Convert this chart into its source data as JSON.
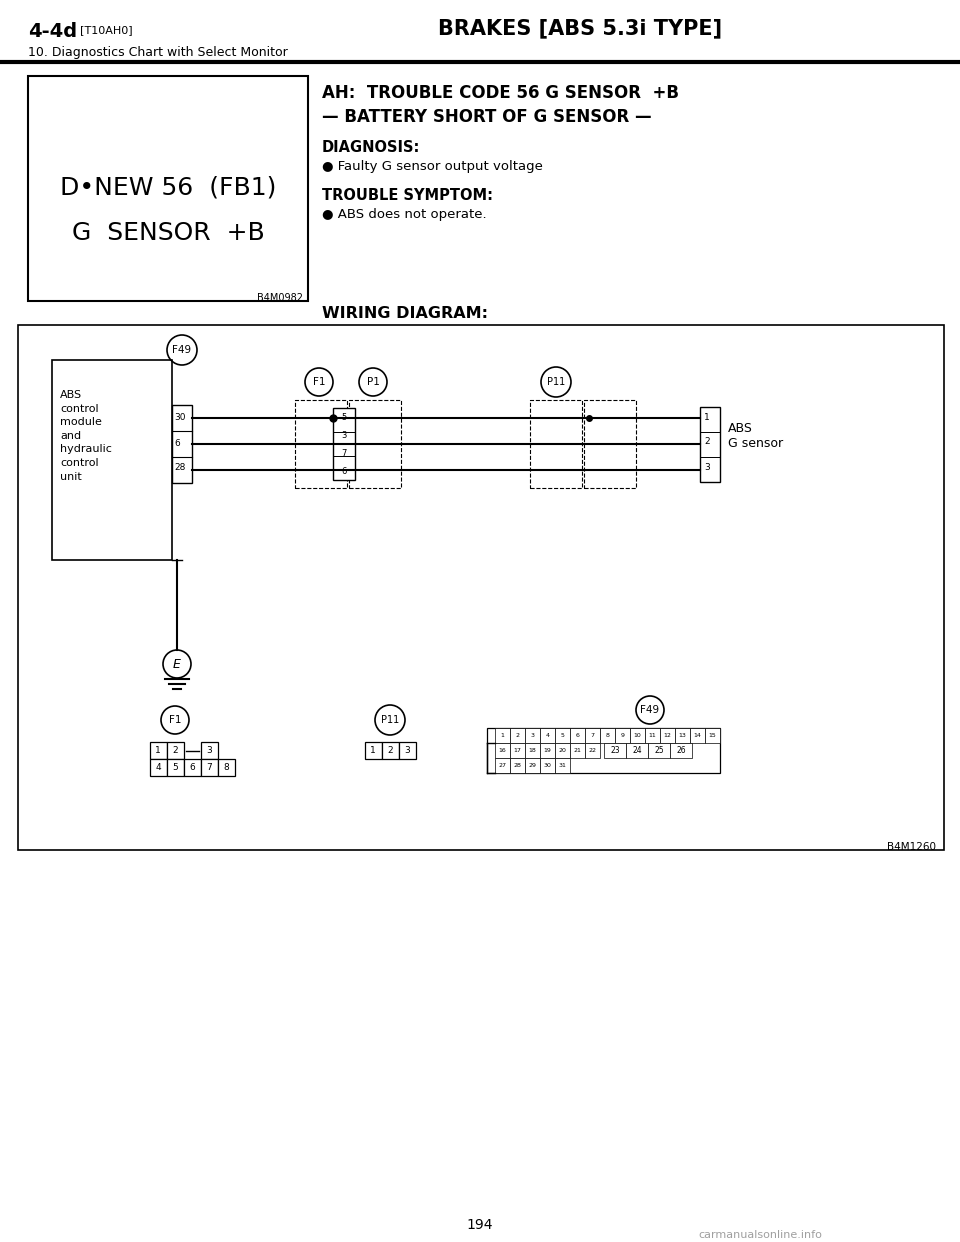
{
  "bg_color": "#ffffff",
  "header": {
    "left_bold": "4-4d",
    "left_small": "[T10AH0]",
    "center": "BRAKES [ABS 5.3i TYPE]",
    "sub": "10. Diagnostics Chart with Select Monitor"
  },
  "top_left_box": {
    "line1": "D•NEW 56  (FB1)",
    "line2": "G  SENSOR  +B",
    "ref": "B4M0982"
  },
  "title_line1": "AH:  TROUBLE CODE 56 G SENSOR  +B",
  "title_line2": "— BATTERY SHORT OF G SENSOR —",
  "diag_label": "DIAGNOSIS:",
  "diag_item": "● Faulty G sensor output voltage",
  "sym_label": "TROUBLE SYMPTOM:",
  "sym_item": "● ABS does not operate.",
  "wiring_label": "WIRING DIAGRAM:",
  "footer_page": "194",
  "footer_ref": "B4M1260",
  "watermark": "carmanualsonline.info"
}
